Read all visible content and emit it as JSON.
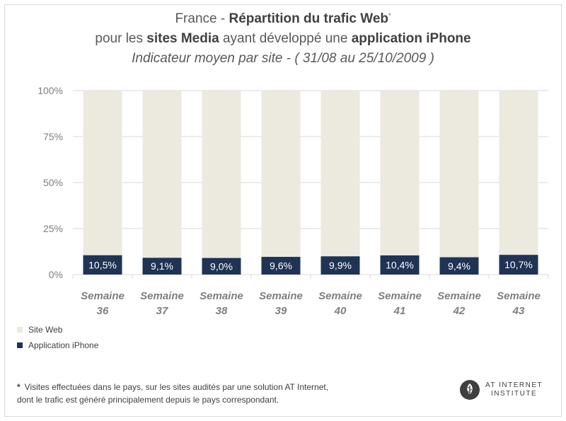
{
  "header": {
    "line1_a": "France - ",
    "line1_b": "Répartition du trafic Web",
    "line1_star": "*",
    "line2_a": "pour les ",
    "line2_b": "sites Media",
    "line2_c": " ayant développé une ",
    "line2_d": "application iPhone",
    "line3": "Indicateur moyen par site - ( 31/08 au 25/10/2009 )"
  },
  "legend": {
    "site_web": "Site Web",
    "application_iphone": "Application iPhone"
  },
  "footnote": {
    "star": "*",
    "line1": "Visites effectuées dans le pays, sur les sites audités par une solution AT Internet,",
    "line2": "dont le trafic est généré principalement depuis le pays correspondant."
  },
  "logo": {
    "line1": "AT INTERNET",
    "line2": "INSTITUTE"
  },
  "colors": {
    "site_web": "#ece9df",
    "application_iphone": "#1f3354",
    "grid": "#d9d9d9",
    "axis_text": "#7f7f7f"
  },
  "chart_data": {
    "type": "bar",
    "stacked": true,
    "percent": true,
    "categories": [
      "Semaine 36",
      "Semaine 37",
      "Semaine 38",
      "Semaine 39",
      "Semaine 40",
      "Semaine 41",
      "Semaine 42",
      "Semaine 43"
    ],
    "series": [
      {
        "name": "Application iPhone",
        "values": [
          10.5,
          9.1,
          9.0,
          9.6,
          9.9,
          10.4,
          9.4,
          10.7
        ],
        "labels": [
          "10,5%",
          "9,1%",
          "9,0%",
          "9,6%",
          "9,9%",
          "10,4%",
          "9,4%",
          "10,7%"
        ]
      },
      {
        "name": "Site Web",
        "values": [
          89.5,
          90.9,
          91.0,
          90.4,
          90.1,
          89.6,
          90.6,
          89.3
        ]
      }
    ],
    "yticks": [
      0,
      25,
      50,
      75,
      100
    ],
    "ytick_labels": [
      "0%",
      "25%",
      "50%",
      "75%",
      "100%"
    ],
    "ylim": [
      0,
      100
    ],
    "xlabel": "",
    "ylabel": "",
    "grid": true,
    "legend_position": "bottom-left"
  }
}
